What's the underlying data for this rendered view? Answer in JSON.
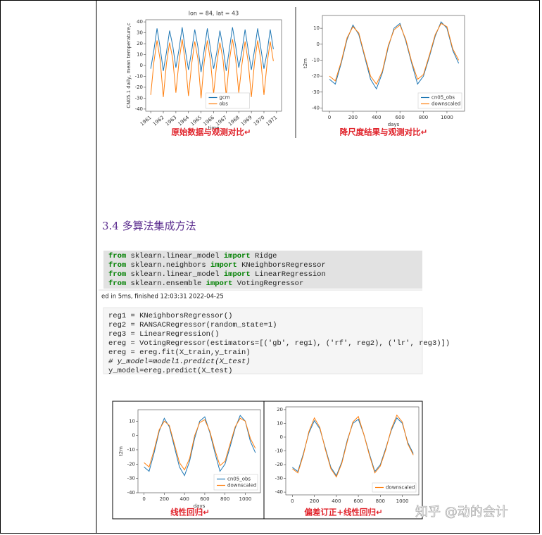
{
  "figures": [
    {
      "chart": {
        "type": "line",
        "title": "lon = 84, lat = 43",
        "xlabel": "time",
        "ylabel": "CN05.1 daily, mean temperature,c",
        "x": [
          1961,
          1961.25,
          1961.5,
          1961.75,
          1962,
          1962.25,
          1962.5,
          1962.75,
          1963,
          1963.25,
          1963.5,
          1963.75,
          1964,
          1964.25,
          1964.5,
          1964.75,
          1965,
          1965.25,
          1965.5,
          1965.75,
          1966,
          1966.25,
          1966.5,
          1966.75,
          1967,
          1967.25,
          1967.5,
          1967.75,
          1968,
          1968.25,
          1968.5,
          1968.75,
          1969,
          1969.25,
          1969.5,
          1969.75,
          1970,
          1970.25,
          1970.5,
          1970.75
        ],
        "series": [
          {
            "name": "gcm",
            "color": "#1f77b4",
            "values": [
              -3,
              14,
              34,
              16,
              -5,
              12,
              32,
              18,
              -2,
              15,
              35,
              14,
              -4,
              13,
              33,
              17,
              -6,
              14,
              34,
              15,
              -3,
              12,
              32,
              16,
              -5,
              15,
              35,
              18,
              -2,
              13,
              33,
              14,
              -4,
              14,
              34,
              16,
              -3,
              12,
              33,
              15
            ]
          },
          {
            "name": "obs",
            "color": "#ff7f0e",
            "values": [
              -27,
              3,
              23,
              5,
              -29,
              2,
              21,
              6,
              -25,
              4,
              24,
              3,
              -28,
              1,
              22,
              6,
              -30,
              3,
              23,
              4,
              -26,
              2,
              21,
              5,
              -28,
              4,
              24,
              6,
              -25,
              1,
              22,
              3,
              -29,
              3,
              23,
              5,
              -27,
              2,
              22,
              4
            ]
          }
        ],
        "xlim": [
          1960.6,
          1971.4
        ],
        "xticks": [
          1961,
          1962,
          1963,
          1964,
          1965,
          1966,
          1967,
          1968,
          1969,
          1970,
          1971
        ],
        "ylim": [
          -42,
          42
        ],
        "yticks": [
          -40,
          -30,
          -20,
          -10,
          0,
          10,
          20,
          30,
          40
        ],
        "legend": "lower center"
      },
      "caption": "原始数据与观测对比↵"
    },
    {
      "chart": {
        "type": "line",
        "xlabel": "days",
        "ylabel": "t2m",
        "x": [
          0,
          50,
          100,
          150,
          200,
          250,
          300,
          350,
          400,
          450,
          500,
          550,
          600,
          650,
          700,
          750,
          800,
          850,
          900,
          950,
          1000,
          1050,
          1100
        ],
        "series": [
          {
            "name": "cn05_obs",
            "color": "#1f77b4",
            "values": [
              -22,
              -25,
              -12,
              3,
              12,
              6,
              -8,
              -22,
              -28,
              -18,
              -2,
              10,
              13,
              2,
              -12,
              -25,
              -20,
              -8,
              5,
              14,
              10,
              -4,
              -12
            ]
          },
          {
            "name": "downscaled",
            "color": "#ff7f0e",
            "values": [
              -20,
              -23,
              -11,
              4,
              11,
              7,
              -7,
              -20,
              -25,
              -17,
              -1,
              9,
              12,
              3,
              -11,
              -22,
              -19,
              -7,
              6,
              13,
              11,
              -3,
              -10
            ]
          }
        ],
        "xlim": [
          -60,
          1150
        ],
        "xticks": [
          0,
          200,
          400,
          600,
          800,
          1000
        ],
        "ylim": [
          -42,
          18
        ],
        "yticks": [
          -40,
          -30,
          -20,
          -10,
          0,
          10
        ],
        "legend": "lower right"
      },
      "caption": "降尺度结果与观测对比↵"
    },
    {
      "chart": {
        "type": "line",
        "xlabel": "days",
        "ylabel": "t2m",
        "x": [
          0,
          50,
          100,
          150,
          200,
          250,
          300,
          350,
          400,
          450,
          500,
          550,
          600,
          650,
          700,
          750,
          800,
          850,
          900,
          950,
          1000,
          1050,
          1100
        ],
        "series": [
          {
            "name": "cn05_obs",
            "color": "#1f77b4",
            "values": [
              -22,
              -25,
              -12,
              3,
              12,
              6,
              -8,
              -22,
              -28,
              -18,
              -2,
              10,
              13,
              2,
              -12,
              -25,
              -20,
              -8,
              5,
              14,
              10,
              -4,
              -12
            ]
          },
          {
            "name": "downscaled",
            "color": "#ff7f0e",
            "values": [
              -19,
              -22,
              -10,
              4,
              10,
              7,
              -6,
              -19,
              -24,
              -16,
              0,
              9,
              11,
              3,
              -10,
              -21,
              -18,
              -6,
              6,
              12,
              10,
              -2,
              -9
            ]
          }
        ],
        "xlim": [
          -60,
          1150
        ],
        "xticks": [
          0,
          200,
          400,
          600,
          800,
          1000
        ],
        "ylim": [
          -40,
          18
        ],
        "yticks": [
          -40,
          -30,
          -20,
          -10,
          0,
          10
        ],
        "legend": "lower right"
      },
      "caption": "线性回归↵"
    },
    {
      "chart": {
        "type": "line",
        "x": [
          0,
          50,
          100,
          150,
          200,
          250,
          300,
          350,
          400,
          450,
          500,
          550,
          600,
          650,
          700,
          750,
          800,
          850,
          900,
          950,
          1000,
          1050,
          1100
        ],
        "series": [
          {
            "color": "#1f77b4",
            "values": [
              -22,
              -25,
              -12,
              3,
              12,
              6,
              -8,
              -22,
              -28,
              -18,
              -2,
              10,
              13,
              2,
              -12,
              -25,
              -20,
              -8,
              5,
              14,
              10,
              -4,
              -12
            ]
          },
          {
            "name": "downscaled",
            "color": "#ff7f0e",
            "values": [
              -23,
              -26,
              -13,
              4,
              14,
              7,
              -9,
              -23,
              -29,
              -19,
              -3,
              11,
              15,
              2,
              -13,
              -26,
              -21,
              -9,
              6,
              16,
              11,
              -5,
              -13
            ]
          }
        ],
        "xlim": [
          -60,
          1150
        ],
        "xticks": [
          0,
          200,
          400,
          600,
          800,
          1000
        ],
        "ylim": [
          -42,
          22
        ],
        "yticks": [
          -40,
          -30,
          -20,
          -10,
          0,
          10,
          20
        ],
        "legend": "lower right"
      },
      "caption": "偏差订正+线性回归↵"
    }
  ],
  "heading": "3.4 多算法集成方法",
  "code1": [
    [
      "from",
      " sklearn.linear_model ",
      "import",
      " Ridge"
    ],
    [
      "from",
      " sklearn.neighbors ",
      "import",
      " KNeighborsRegressor"
    ],
    [
      "from",
      " sklearn.linear_model ",
      "import",
      " LinearRegression"
    ],
    [
      "from",
      " sklearn.ensemble ",
      "import",
      " VotingRegressor"
    ]
  ],
  "status": "ed in 5ms, finished 12:03:31 2022-04-25",
  "code2": [
    "reg1 = KNeighborsRegressor()",
    "reg2 = RANSACRegressor(random_state=1)",
    "reg3 = LinearRegression()",
    "ereg = VotingRegressor(estimators=[('gb', reg1), ('rf', reg2), ('lr', reg3)])",
    "ereg = ereg.fit(X_train,y_train)",
    "# y_model=model1.predict(X_test)",
    "y_model=ereg.predict(X_test)"
  ],
  "watermark": "知乎 @动的会计"
}
